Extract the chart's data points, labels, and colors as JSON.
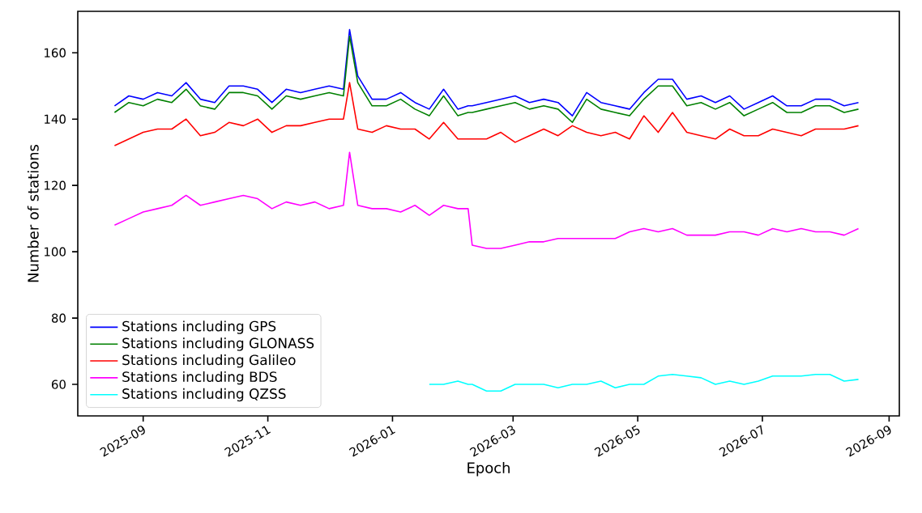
{
  "chart_data": {
    "type": "line",
    "xlabel": "Epoch",
    "ylabel": "Number of stations",
    "x": [
      "2025-08-18",
      "2025-08-25",
      "2025-09-01",
      "2025-09-08",
      "2025-09-15",
      "2025-09-22",
      "2025-09-29",
      "2025-10-06",
      "2025-10-13",
      "2025-10-20",
      "2025-10-27",
      "2025-11-03",
      "2025-11-10",
      "2025-11-17",
      "2025-11-24",
      "2025-12-01",
      "2025-12-08",
      "2025-12-11",
      "2025-12-15",
      "2025-12-22",
      "2025-12-29",
      "2026-01-05",
      "2026-01-12",
      "2026-01-19",
      "2026-01-26",
      "2026-02-02",
      "2026-02-07",
      "2026-02-09",
      "2026-02-16",
      "2026-02-23",
      "2026-03-02",
      "2026-03-09",
      "2026-03-16",
      "2026-03-23",
      "2026-03-30",
      "2026-04-06",
      "2026-04-13",
      "2026-04-20",
      "2026-04-27",
      "2026-05-04",
      "2026-05-11",
      "2026-05-18",
      "2026-05-25",
      "2026-06-01",
      "2026-06-08",
      "2026-06-15",
      "2026-06-22",
      "2026-06-29",
      "2026-07-06",
      "2026-07-13",
      "2026-07-20",
      "2026-07-27",
      "2026-08-03",
      "2026-08-10",
      "2026-08-17"
    ],
    "series": [
      {
        "name": "Stations including GPS",
        "color": "#0000ff",
        "values": [
          144,
          147,
          146,
          148,
          147,
          151,
          146,
          145,
          150,
          150,
          149,
          145,
          149,
          148,
          149,
          150,
          149,
          167,
          153,
          146,
          146,
          148,
          145,
          143,
          149,
          143,
          144,
          144,
          145,
          146,
          147,
          145,
          146,
          145,
          141,
          148,
          145,
          144,
          143,
          148,
          152,
          152,
          146,
          147,
          145,
          147,
          143,
          145,
          147,
          144,
          144,
          146,
          146,
          144,
          145
        ]
      },
      {
        "name": "Stations including GLONASS",
        "color": "#008000",
        "values": [
          142,
          145,
          144,
          146,
          145,
          149,
          144,
          143,
          148,
          148,
          147,
          143,
          147,
          146,
          147,
          148,
          147,
          165,
          151,
          144,
          144,
          146,
          143,
          141,
          147,
          141,
          142,
          142,
          143,
          144,
          145,
          143,
          144,
          143,
          139,
          146,
          143,
          142,
          141,
          146,
          150,
          150,
          144,
          145,
          143,
          145,
          141,
          143,
          145,
          142,
          142,
          144,
          144,
          142,
          143
        ]
      },
      {
        "name": "Stations including Galileo",
        "color": "#ff0000",
        "values": [
          132,
          134,
          136,
          137,
          137,
          140,
          135,
          136,
          139,
          138,
          140,
          136,
          138,
          138,
          139,
          140,
          140,
          151,
          137,
          136,
          138,
          137,
          137,
          134,
          139,
          134,
          134,
          134,
          134,
          136,
          133,
          135,
          137,
          135,
          138,
          136,
          135,
          136,
          134,
          141,
          136,
          142,
          136,
          135,
          134,
          137,
          135,
          135,
          137,
          136,
          135,
          137,
          137,
          137,
          138
        ]
      },
      {
        "name": "Stations including BDS",
        "color": "#ff00ff",
        "values": [
          108,
          110,
          112,
          113,
          114,
          117,
          114,
          115,
          116,
          117,
          116,
          113,
          115,
          114,
          115,
          113,
          114,
          130,
          114,
          113,
          113,
          112,
          114,
          111,
          114,
          113,
          113,
          102,
          101,
          101,
          102,
          103,
          103,
          104,
          104,
          104,
          104,
          104,
          106,
          107,
          106,
          107,
          105,
          105,
          105,
          106,
          106,
          105,
          107,
          106,
          107,
          106,
          106,
          105,
          107
        ]
      },
      {
        "name": "Stations including QZSS",
        "color": "#00ffff",
        "values": [
          null,
          null,
          null,
          null,
          null,
          null,
          null,
          null,
          null,
          null,
          null,
          null,
          null,
          null,
          null,
          null,
          null,
          null,
          null,
          null,
          null,
          null,
          null,
          60,
          60,
          61,
          60,
          60,
          58,
          58,
          60,
          60,
          60,
          59,
          60,
          60,
          61,
          59,
          60,
          60,
          62.5,
          63,
          62.5,
          62,
          60,
          61,
          60,
          61,
          62.5,
          62.5,
          62.5,
          63,
          63,
          61,
          61.5
        ]
      }
    ],
    "xlim": [
      "2025-07-31",
      "2026-09-06"
    ],
    "ylim": [
      50.5,
      172.5
    ],
    "xticks": [
      "2025-09",
      "2025-11",
      "2026-01",
      "2026-03",
      "2026-05",
      "2026-07",
      "2026-09"
    ],
    "yticks": [
      60,
      80,
      100,
      120,
      140,
      160
    ],
    "legend": "bottom left"
  }
}
